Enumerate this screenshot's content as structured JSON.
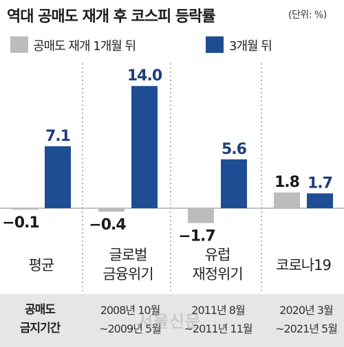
{
  "title": "역대 공매도 재개 후 코스피 등락률",
  "unit": "(단위: %)",
  "watermark": "서울신문",
  "colors": {
    "series1": "#bcbcbc",
    "series2": "#1f4d94",
    "band": "#e6e6e6"
  },
  "chart_data": {
    "type": "bar",
    "title": "역대 공매도 재개 후 코스피 등락률",
    "unit": "(단위: %)",
    "categories": [
      [
        "평균"
      ],
      [
        "글로벌",
        "금융위기"
      ],
      [
        "유럽",
        "재정위기"
      ],
      [
        "코로나19"
      ]
    ],
    "series": [
      {
        "name": "공매도 재개 1개월 뒤",
        "values": [
          -0.1,
          -0.4,
          -1.7,
          1.8
        ],
        "labels": [
          "−0.1",
          "−0.4",
          "−1.7",
          "1.8"
        ]
      },
      {
        "name": "3개월 뒤",
        "values": [
          7.1,
          14.0,
          5.6,
          1.7
        ],
        "labels": [
          "7.1",
          "14.0",
          "5.6",
          "1.7"
        ]
      }
    ],
    "legend": "top",
    "grid": false
  },
  "period": {
    "label": [
      "공매도",
      "금지기간"
    ],
    "values": [
      [
        "2008년 10월",
        "~2009년 5월"
      ],
      [
        "2011년 8월",
        "~2011년 11월"
      ],
      [
        "2020년 3월",
        "~2021년 5월"
      ]
    ]
  }
}
